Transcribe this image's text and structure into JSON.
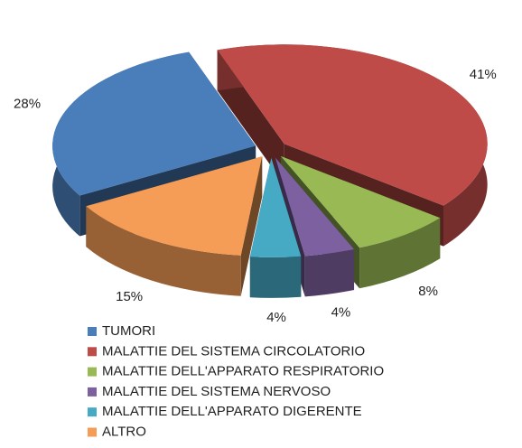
{
  "chart_data": {
    "type": "pie3d",
    "categories": [
      "TUMORI",
      "MALATTIE DEL SISTEMA CIRCOLATORIO",
      "MALATTIE DELL'APPARATO RESPIRATORIO",
      "MALATTIE DEL SISTEMA NERVOSO",
      "MALATTIE DELL'APPARATO DIGERENTE",
      "ALTRO"
    ],
    "values": [
      28,
      41,
      8,
      4,
      4,
      15
    ],
    "value_labels": [
      "28%",
      "41%",
      "8%",
      "4%",
      "4%",
      "15%"
    ],
    "colors": [
      "#4a7ebb",
      "#be4b48",
      "#98b954",
      "#7d60a0",
      "#46aac5",
      "#f59d56"
    ],
    "legend": "bottom-left"
  }
}
